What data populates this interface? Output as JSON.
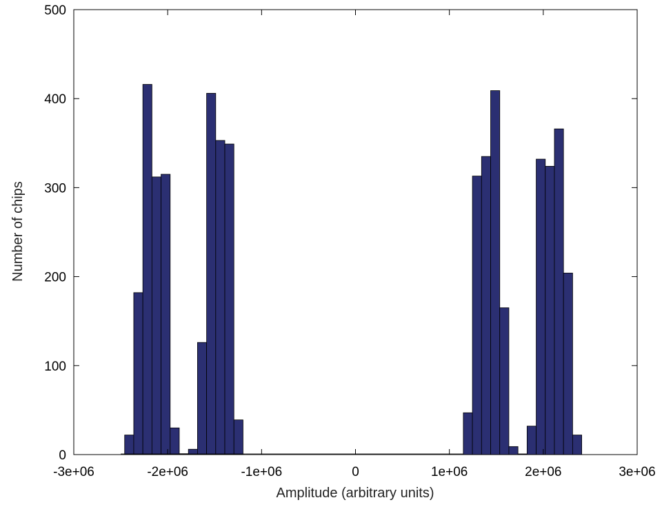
{
  "chart_data": {
    "type": "bar",
    "title": "",
    "xlabel": "Amplitude (arbitrary units)",
    "ylabel": "Number of chips",
    "xlim": [
      -3000000,
      3000000
    ],
    "ylim": [
      0,
      500
    ],
    "grid": false,
    "bar_color": "#2b2f72",
    "bar_edge_color": "#000000",
    "bin_width": 97000,
    "x_ticks": [
      -3000000,
      -2000000,
      -1000000,
      0,
      1000000,
      2000000,
      3000000
    ],
    "x_tick_labels": [
      "-3e+06",
      "-2e+06",
      "-1e+06",
      "0",
      "1e+06",
      "2e+06",
      "3e+06"
    ],
    "y_ticks": [
      0,
      100,
      200,
      300,
      400,
      500
    ],
    "y_tick_labels": [
      "0",
      "100",
      "200",
      "300",
      "400",
      "500"
    ],
    "x": [
      -2410000,
      -2313000,
      -2216000,
      -2119000,
      -2022000,
      -1925000,
      -1828000,
      -1731000,
      -1634000,
      -1537000,
      -1440000,
      -1343000,
      -1246000,
      1197000,
      1294000,
      1391000,
      1488000,
      1585000,
      1682000,
      1779000,
      1876000,
      1973000,
      2070000,
      2167000,
      2264000,
      2361000
    ],
    "values": [
      22,
      182,
      416,
      312,
      315,
      30,
      1,
      6,
      126,
      406,
      353,
      349,
      39,
      47,
      313,
      335,
      409,
      165,
      9,
      0,
      32,
      332,
      324,
      366,
      204,
      22
    ]
  }
}
